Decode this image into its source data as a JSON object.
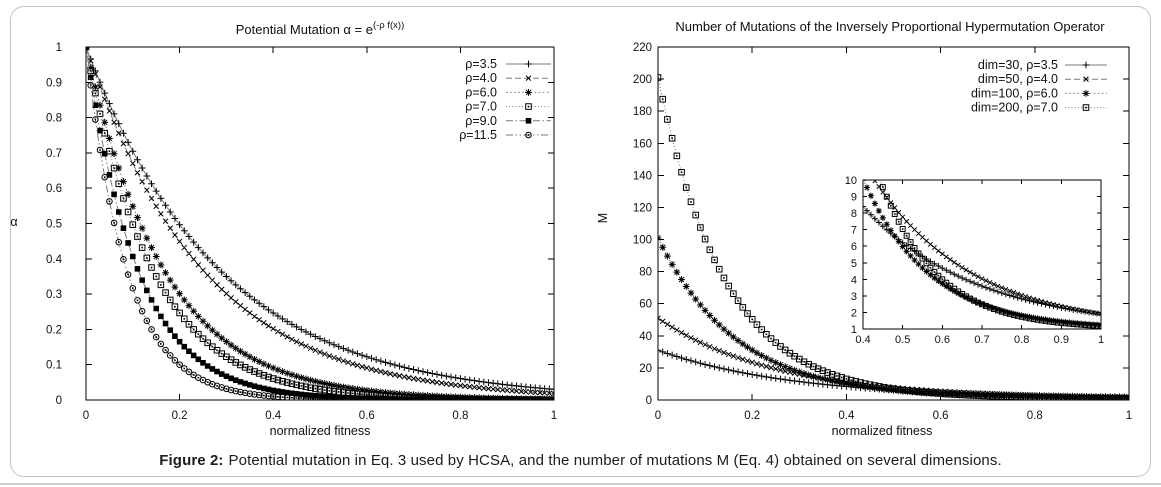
{
  "page": {
    "background": "#ffffff"
  },
  "figure_panel": {
    "border_color": "#c2c2c2"
  },
  "caption": {
    "label": "Figure 2:",
    "text": "Potential mutation in Eq. 3 used by HCSA, and the number of mutations M (Eq. 4) obtained on several dimensions."
  },
  "colors": {
    "axis": "#000000",
    "line": "#7a7a7a",
    "marker": "#000000",
    "text": "#111111",
    "inset_background": "#ffffff"
  },
  "chart_data": [
    {
      "id": "potential-mutation",
      "type": "line",
      "title": "Potential Mutation  α = e^(-ρ f(x))",
      "title_base": "Potential Mutation  α = e",
      "title_superscript": "(-ρ f(x))",
      "xlabel": "normalized fitness",
      "ylabel": "α",
      "xlim": [
        0,
        1
      ],
      "ylim": [
        0,
        1
      ],
      "xtick_values": [
        0,
        0.2,
        0.4,
        0.6,
        0.8,
        1
      ],
      "xtick_labels": [
        "0",
        "0.2",
        "0.4",
        "0.6",
        "0.8",
        "1"
      ],
      "ytick_values": [
        0,
        0.1,
        0.2,
        0.3,
        0.4,
        0.5,
        0.6,
        0.7,
        0.8,
        0.9,
        1
      ],
      "ytick_labels": [
        "0",
        "0.1",
        "0.2",
        "0.3",
        "0.4",
        "0.5",
        "0.6",
        "0.7",
        "0.8",
        "0.9",
        "1"
      ],
      "grid": false,
      "legend_position": "top-right-inside",
      "formula": "alpha(f) = exp(-rho * f)",
      "samples": 101,
      "series": [
        {
          "label": "ρ=3.5",
          "rho": 3.5,
          "marker": "plus",
          "dash": "solid",
          "y_at_0": 1,
          "y_at_1": 0.0302
        },
        {
          "label": "ρ=4.0",
          "rho": 4.0,
          "marker": "x",
          "dash": "dash",
          "y_at_0": 1,
          "y_at_1": 0.0183
        },
        {
          "label": "ρ=6.0",
          "rho": 6.0,
          "marker": "asterisk",
          "dash": "dot",
          "y_at_0": 1,
          "y_at_1": 0.0025
        },
        {
          "label": "ρ=7.0",
          "rho": 7.0,
          "marker": "square-open",
          "dash": "fine-dot",
          "y_at_0": 1,
          "y_at_1": 0.0009
        },
        {
          "label": "ρ=9.0",
          "rho": 9.0,
          "marker": "square-filled",
          "dash": "dash-dot",
          "y_at_0": 1,
          "y_at_1": 0.0001
        },
        {
          "label": "ρ=11.5",
          "rho": 11.5,
          "marker": "circle-dot",
          "dash": "dash-dot-dot",
          "y_at_0": 1,
          "y_at_1": 1e-05
        }
      ]
    },
    {
      "id": "number-of-mutations",
      "type": "line",
      "title": "Number of Mutations of the Inversely Proportional Hypermutation Operator",
      "xlabel": "normalized fitness",
      "ylabel": "M",
      "ylabel_rotated": true,
      "xlim": [
        0,
        1
      ],
      "ylim": [
        0,
        220
      ],
      "xtick_values": [
        0,
        0.2,
        0.4,
        0.6,
        0.8,
        1
      ],
      "xtick_labels": [
        "0",
        "0.2",
        "0.4",
        "0.6",
        "0.8",
        "1"
      ],
      "ytick_values": [
        0,
        20,
        40,
        60,
        80,
        100,
        120,
        140,
        160,
        180,
        200,
        220
      ],
      "ytick_labels": [
        "0",
        "20",
        "40",
        "60",
        "80",
        "100",
        "120",
        "140",
        "160",
        "180",
        "200",
        "220"
      ],
      "grid": false,
      "legend_position": "top-right-inside",
      "formula": "M(f) = dim * exp(-rho * f) + 1",
      "offset": 1,
      "samples": 101,
      "series": [
        {
          "label": "dim=30, ρ=3.5",
          "dim": 30,
          "rho": 3.5,
          "marker": "plus",
          "dash": "solid",
          "y_at_0": 31,
          "y_at_1": 1.91
        },
        {
          "label": "dim=50, ρ=4.0",
          "dim": 50,
          "rho": 4.0,
          "marker": "x",
          "dash": "dash",
          "y_at_0": 51,
          "y_at_1": 1.92
        },
        {
          "label": "dim=100, ρ=6.0",
          "dim": 100,
          "rho": 6.0,
          "marker": "asterisk",
          "dash": "dot",
          "y_at_0": 101,
          "y_at_1": 1.25
        },
        {
          "label": "dim=200, ρ=7.0",
          "dim": 200,
          "rho": 7.0,
          "marker": "square-open",
          "dash": "fine-dot",
          "y_at_0": 201,
          "y_at_1": 1.18
        }
      ],
      "inset": {
        "id": "number-of-mutations-inset",
        "type": "line",
        "xlim": [
          0.4,
          1
        ],
        "ylim": [
          1,
          10
        ],
        "xtick_values": [
          0.4,
          0.5,
          0.6,
          0.7,
          0.8,
          0.9,
          1
        ],
        "xtick_labels": [
          "0.4",
          "0.5",
          "0.6",
          "0.7",
          "0.8",
          "0.9",
          "1"
        ],
        "ytick_values": [
          1,
          2,
          3,
          4,
          5,
          6,
          7,
          8,
          9,
          10
        ],
        "ytick_labels": [
          "1",
          "2",
          "3",
          "4",
          "5",
          "6",
          "7",
          "8",
          "9",
          "10"
        ],
        "samples": 61
      }
    }
  ]
}
